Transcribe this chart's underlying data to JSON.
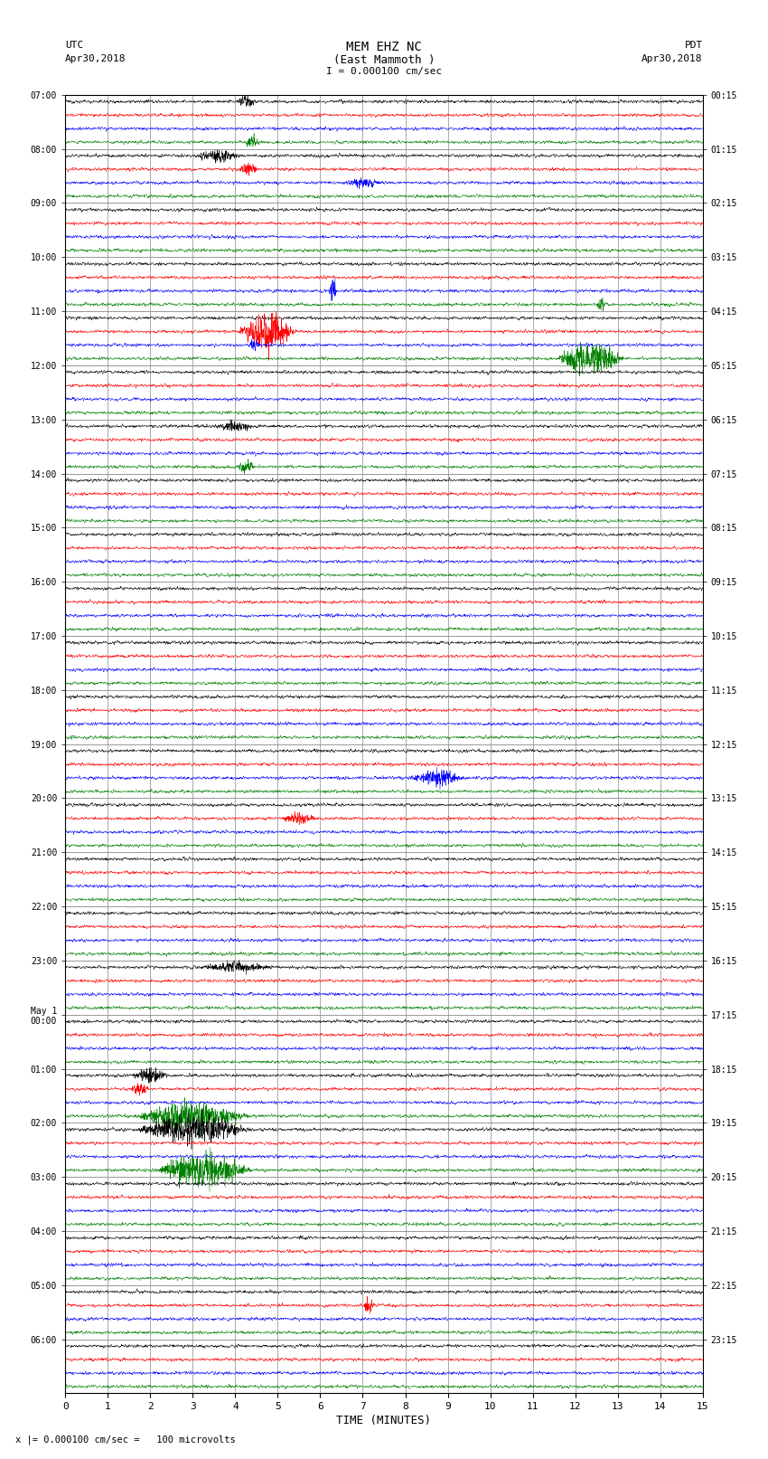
{
  "title_line1": "MEM EHZ NC",
  "title_line2": "(East Mammoth )",
  "title_line3": "I = 0.000100 cm/sec",
  "left_header_line1": "UTC",
  "left_header_line2": "Apr30,2018",
  "right_header_line1": "PDT",
  "right_header_line2": "Apr30,2018",
  "xlabel": "TIME (MINUTES)",
  "bottom_note": "x |= 0.000100 cm/sec =   100 microvolts",
  "utc_labels": [
    "07:00",
    "08:00",
    "09:00",
    "10:00",
    "11:00",
    "12:00",
    "13:00",
    "14:00",
    "15:00",
    "16:00",
    "17:00",
    "18:00",
    "19:00",
    "20:00",
    "21:00",
    "22:00",
    "23:00",
    "May 1\n00:00",
    "01:00",
    "02:00",
    "03:00",
    "04:00",
    "05:00",
    "06:00"
  ],
  "pdt_labels": [
    "00:15",
    "01:15",
    "02:15",
    "03:15",
    "04:15",
    "05:15",
    "06:15",
    "07:15",
    "08:15",
    "09:15",
    "10:15",
    "11:15",
    "12:15",
    "13:15",
    "14:15",
    "15:15",
    "16:15",
    "17:15",
    "18:15",
    "19:15",
    "20:15",
    "21:15",
    "22:15",
    "23:15"
  ],
  "n_hours": 24,
  "colors_per_hour": [
    "black",
    "red",
    "blue",
    "green"
  ],
  "bg_color": "#ffffff",
  "grid_color": "#888888",
  "trace_lw": 0.35,
  "noise_amp": 0.09
}
